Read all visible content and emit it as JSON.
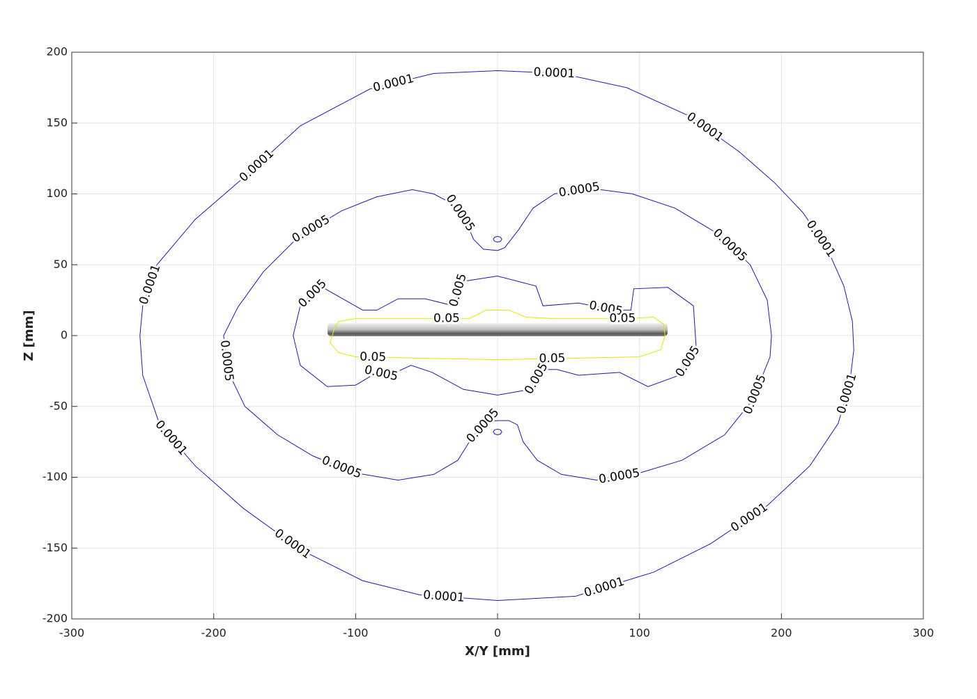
{
  "chart_data": {
    "type": "contour",
    "xlabel": "X/Y [mm]",
    "ylabel": "Z [mm]",
    "xlim": [
      -300,
      300
    ],
    "xticks": [
      -300,
      -200,
      -100,
      0,
      100,
      200,
      300
    ],
    "ylim": [
      -200,
      200
    ],
    "yticks": [
      -200,
      -150,
      -100,
      -50,
      0,
      50,
      100,
      150,
      200
    ],
    "grid": true,
    "contours": [
      {
        "level": 0.0001,
        "color": "#1a1aa8",
        "lines": [
          {
            "x": [
              0,
              45,
              91,
              135,
              170,
              195,
              215,
              232,
              244,
              250,
              251,
              248,
              240,
              220,
              190,
              150,
              110,
              55,
              0,
              -55,
              -95,
              -139,
              -179,
              -213,
              -238,
              -250,
              -252,
              -250,
              -240,
              -213,
              -176,
              -139,
              -90,
              -45,
              0
            ],
            "z": [
              187,
              185,
              175,
              155,
              130,
              108,
              87,
              62,
              35,
              10,
              -10,
              -35,
              -62,
              -92,
              -120,
              -147,
              -167,
              -184,
              -187,
              -183,
              -173,
              -151,
              -122,
              -92,
              -63,
              -28,
              0,
              21,
              50,
              82,
              114,
              148,
              174,
              185,
              187
            ]
          }
        ]
      },
      {
        "level": 0.0005,
        "color": "#1a1aa8",
        "lines": [
          {
            "x": [
              0,
              -10,
              -17,
              -22,
              -30,
              -45,
              -60,
              -85,
              -110,
              -140,
              -165,
              -183,
              -193,
              -190,
              -178,
              -155,
              -130,
              -100,
              -70,
              -45,
              -28,
              -18,
              -8,
              0,
              8,
              14,
              18,
              28,
              45,
              70,
              100,
              130,
              160,
              180,
              192,
              193,
              190,
              178,
              155,
              125,
              95,
              65,
              40,
              25,
              15,
              5,
              0
            ],
            "z": [
              60,
              61,
              68,
              80,
              92,
              100,
              103,
              98,
              88,
              70,
              45,
              20,
              0,
              -25,
              -50,
              -70,
              -85,
              -97,
              -102,
              -98,
              -88,
              -72,
              -61,
              -60,
              -60,
              -63,
              -75,
              -88,
              -98,
              -102,
              -97,
              -88,
              -70,
              -45,
              -15,
              0,
              25,
              50,
              72,
              90,
              100,
              104,
              100,
              90,
              75,
              62,
              60
            ]
          },
          {
            "x": [
              0,
              2,
              3,
              2,
              0,
              -2,
              -3,
              -2,
              0
            ],
            "z": [
              70,
              69.5,
              68,
              66.5,
              66,
              66.5,
              68,
              69.5,
              70
            ]
          },
          {
            "x": [
              0,
              2,
              3,
              2,
              0,
              -2,
              -3,
              -2,
              0
            ],
            "z": [
              -66,
              -66.5,
              -68,
              -69.5,
              -70,
              -69.5,
              -68,
              -66.5,
              -66
            ]
          }
        ]
      },
      {
        "level": 0.005,
        "color": "#1a1aa8",
        "lines": [
          {
            "x": [
              -95,
              -125,
              -139,
              -144,
              -139,
              -120,
              -100,
              -85,
              -76,
              -61,
              -46,
              -24,
              0,
              23,
              31,
              42,
              57,
              86,
              106,
              128,
              140,
              138,
              120,
              96,
              94,
              82,
              57,
              32,
              27,
              0,
              -26,
              -31,
              -51,
              -70,
              -85,
              -95
            ],
            "z": [
              18,
              35,
              21,
              0,
              -21,
              -36,
              -35,
              -26,
              -28,
              -21,
              -26,
              -38,
              -42,
              -38,
              -24,
              -24,
              -28,
              -26,
              -36,
              -28,
              -9,
              21,
              34,
              33,
              18,
              18,
              23,
              21,
              35,
              42,
              38,
              21,
              26,
              26,
              18,
              18
            ]
          }
        ]
      },
      {
        "level": 0.05,
        "color": "#e6e600",
        "lines": [
          {
            "x": [
              -115,
              -118,
              -112,
              -100,
              -50,
              0,
              50,
              100,
              115,
              118,
              117,
              110,
              90,
              40,
              20,
              8,
              -8,
              -20,
              -60,
              -100,
              -112,
              -115
            ],
            "z": [
              5,
              -5,
              -12,
              -15,
              -16,
              -17,
              -16,
              -15,
              -10,
              0,
              8,
              13,
              12,
              12,
              13,
              18,
              18,
              12,
              12,
              12,
              10,
              5
            ]
          }
        ]
      }
    ]
  }
}
